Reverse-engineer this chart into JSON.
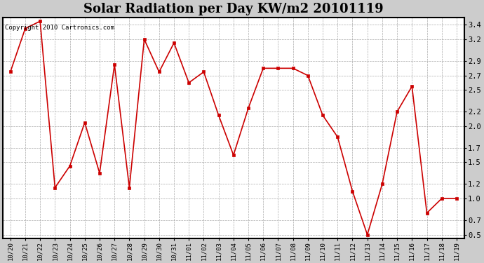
{
  "title": "Solar Radiation per Day KW/m2 20101119",
  "copyright": "Copyright 2010 Cartronics.com",
  "labels": [
    "10/20",
    "10/21",
    "10/22",
    "10/23",
    "10/24",
    "10/25",
    "10/26",
    "10/27",
    "10/28",
    "10/29",
    "10/30",
    "10/31",
    "11/01",
    "11/02",
    "11/03",
    "11/04",
    "11/05",
    "11/06",
    "11/07",
    "11/08",
    "11/09",
    "11/10",
    "11/11",
    "11/12",
    "11/13",
    "11/14",
    "11/15",
    "11/16",
    "11/17",
    "11/18",
    "11/19"
  ],
  "values": [
    2.75,
    3.35,
    3.45,
    1.15,
    1.45,
    2.05,
    1.35,
    2.85,
    1.15,
    3.2,
    2.75,
    3.15,
    2.6,
    2.75,
    2.15,
    1.6,
    2.25,
    2.8,
    2.8,
    2.8,
    2.7,
    2.15,
    1.85,
    1.1,
    0.5,
    1.2,
    2.2,
    2.55,
    0.8,
    1.0,
    1.0
  ],
  "line_color": "#cc0000",
  "marker_color": "#cc0000",
  "outer_bg": "#cccccc",
  "plot_bg_color": "#ffffff",
  "grid_color": "#aaaaaa",
  "yticks": [
    0.5,
    0.7,
    1.0,
    1.2,
    1.5,
    1.7,
    2.0,
    2.2,
    2.5,
    2.7,
    2.9,
    3.2,
    3.4
  ],
  "ymin": 0.45,
  "ymax": 3.5,
  "title_fontsize": 13,
  "copyright_fontsize": 6.5,
  "tick_fontsize": 6.5,
  "ytick_fontsize": 7.5
}
